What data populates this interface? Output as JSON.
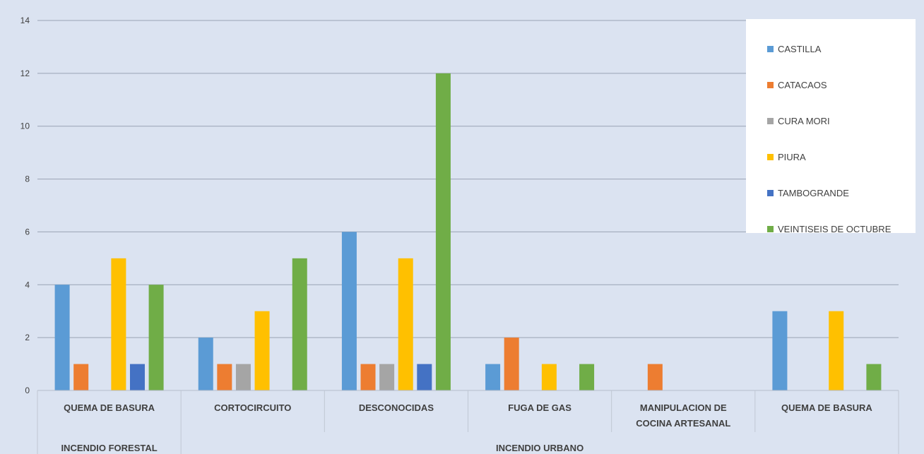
{
  "chart_data": {
    "type": "bar",
    "title": "",
    "xlabel": "",
    "ylabel": "",
    "ylim": [
      0,
      14
    ],
    "yticks": [
      "0",
      "2",
      "4",
      "6",
      "8",
      "10",
      "12",
      "14"
    ],
    "grid": true,
    "legend_position": "top-right",
    "categories": [
      "QUEMA DE BASURA",
      "CORTOCIRCUITO",
      "DESCONOCIDAS",
      "FUGA DE GAS",
      "MANIPULACION DE COCINA ARTESANAL",
      "QUEMA DE BASURA"
    ],
    "category_label_lines": [
      [
        "QUEMA DE BASURA"
      ],
      [
        "CORTOCIRCUITO"
      ],
      [
        "DESCONOCIDAS"
      ],
      [
        "FUGA DE GAS"
      ],
      [
        "MANIPULACION DE",
        "COCINA ARTESANAL"
      ],
      [
        "QUEMA DE BASURA"
      ]
    ],
    "groups": [
      {
        "label": "INCENDIO FORESTAL",
        "categories": [
          0
        ]
      },
      {
        "label": "INCENDIO URBANO",
        "categories": [
          1,
          2,
          3,
          4,
          5
        ]
      }
    ],
    "series": [
      {
        "name": "CASTILLA",
        "color": "#5b9bd5",
        "values": [
          4,
          2,
          6,
          1,
          0,
          3
        ]
      },
      {
        "name": "CATACAOS",
        "color": "#ed7d31",
        "values": [
          1,
          1,
          1,
          2,
          1,
          0
        ]
      },
      {
        "name": "CURA MORI",
        "color": "#a5a5a5",
        "values": [
          0,
          1,
          1,
          0,
          0,
          0
        ]
      },
      {
        "name": "PIURA",
        "color": "#ffc000",
        "values": [
          5,
          3,
          5,
          1,
          0,
          3
        ]
      },
      {
        "name": "TAMBOGRANDE",
        "color": "#4472c4",
        "values": [
          1,
          0,
          1,
          0,
          0,
          0
        ]
      },
      {
        "name": "VEINTISEIS DE OCTUBRE",
        "color": "#70ad47",
        "values": [
          4,
          5,
          12,
          1,
          0,
          1
        ]
      }
    ]
  }
}
